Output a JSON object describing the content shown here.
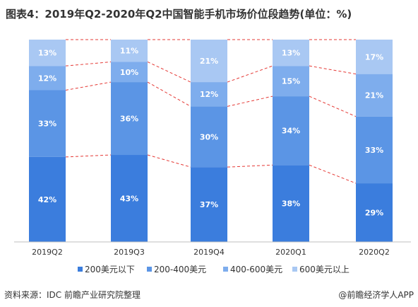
{
  "header": {
    "title": "图表4：2019年Q2-2020年Q2中国智能手机市场价位段趋势(单位：%)"
  },
  "footer": {
    "source": "资料来源：IDC 前瞻产业研究院整理",
    "brand": "@前瞻经济学人APP"
  },
  "colors": {
    "series": [
      "#3b7ddd",
      "#5b95e5",
      "#7eaded",
      "#a9c8f3"
    ],
    "connector": "#e53935",
    "axis": "#bfbfbf"
  },
  "chart_data": {
    "type": "bar",
    "stacked": true,
    "normalized_percent": true,
    "categories": [
      "2019Q2",
      "2019Q3",
      "2019Q4",
      "2020Q1",
      "2020Q2"
    ],
    "series": [
      {
        "name": "200美元以下",
        "values": [
          42,
          43,
          37,
          38,
          29
        ]
      },
      {
        "name": "200-400美元",
        "values": [
          33,
          36,
          30,
          34,
          33
        ]
      },
      {
        "name": "400-600美元",
        "values": [
          12,
          10,
          12,
          15,
          21
        ]
      },
      {
        "name": "600美元以上",
        "values": [
          13,
          11,
          21,
          13,
          17
        ]
      }
    ],
    "value_labels": [
      [
        "42%",
        "43%",
        "37%",
        "38%",
        "29%"
      ],
      [
        "33%",
        "36%",
        "30%",
        "34%",
        "33%"
      ],
      [
        "12%",
        "10%",
        "12%",
        "15%",
        "21%"
      ],
      [
        "13%",
        "11%",
        "21%",
        "13%",
        "17%"
      ]
    ],
    "title": "图表4：2019年Q2-2020年Q2中国智能手机市场价位段趋势(单位：%)",
    "ylim": [
      0,
      100
    ],
    "grid": false,
    "legend_position": "bottom",
    "connector_lines": "dashed red lines between adjacent bar segment boundaries"
  }
}
